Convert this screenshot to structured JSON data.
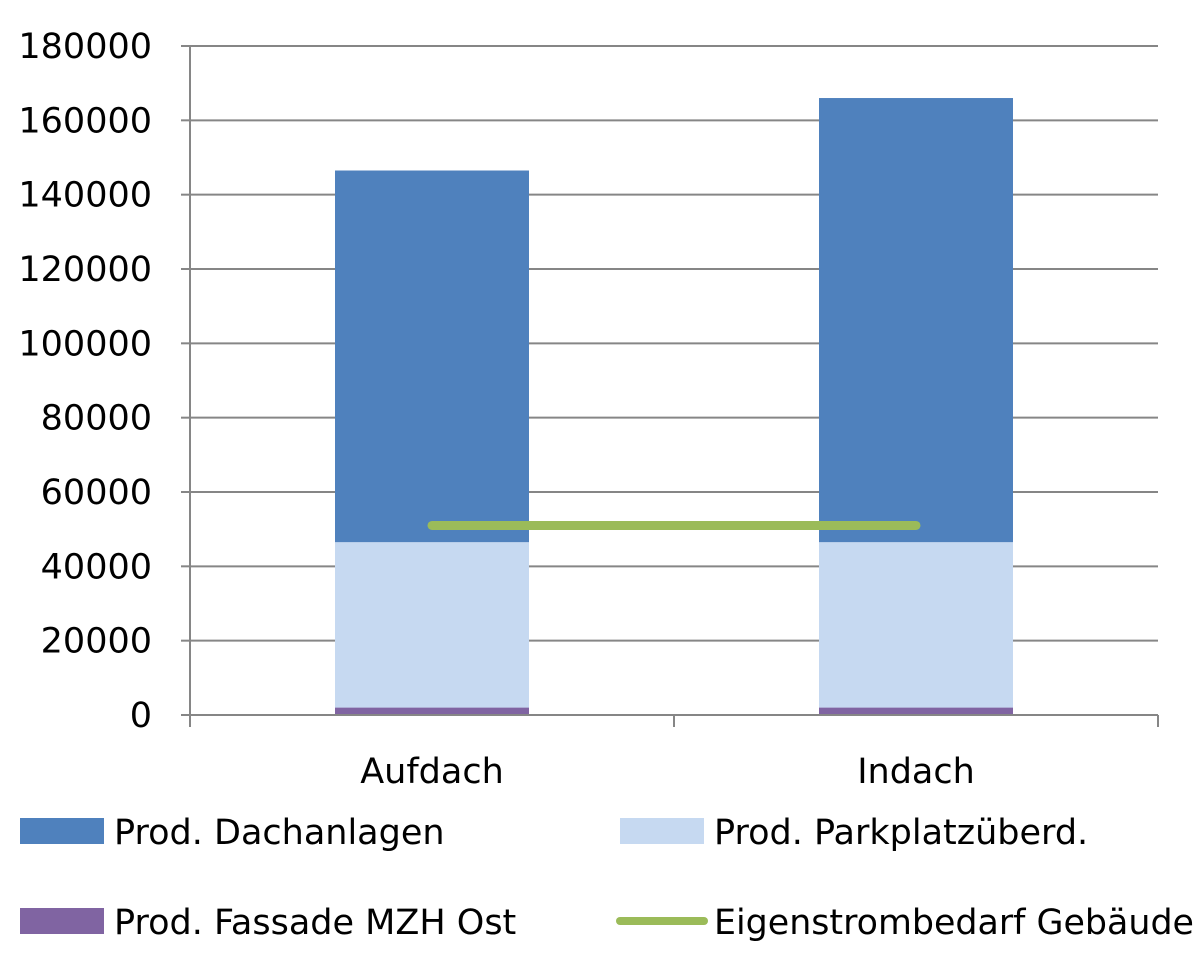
{
  "chart_data": {
    "type": "bar",
    "stacked": true,
    "categories": [
      "Aufdach",
      "Indach"
    ],
    "series": [
      {
        "name": "Prod. Fassade MZH Ost",
        "values": [
          2000,
          2000
        ],
        "color": "#8064A2"
      },
      {
        "name": "Prod. Parkplatzüberd.",
        "values": [
          44500,
          44500
        ],
        "color": "#C6D9F1"
      },
      {
        "name": "Prod. Dachanlagen",
        "values": [
          100000,
          119500
        ],
        "color": "#4F81BD"
      }
    ],
    "line_series": {
      "name": "Eigenstrombedarf Gebäude",
      "values": [
        51000,
        51000
      ],
      "color": "#9BBB59"
    },
    "ylim": [
      0,
      180000
    ],
    "y_ticks": [
      "0",
      "20000",
      "40000",
      "60000",
      "80000",
      "100000",
      "120000",
      "140000",
      "160000",
      "180000"
    ],
    "grid": true,
    "legend_position": "bottom",
    "title": "",
    "xlabel": "",
    "ylabel": ""
  }
}
